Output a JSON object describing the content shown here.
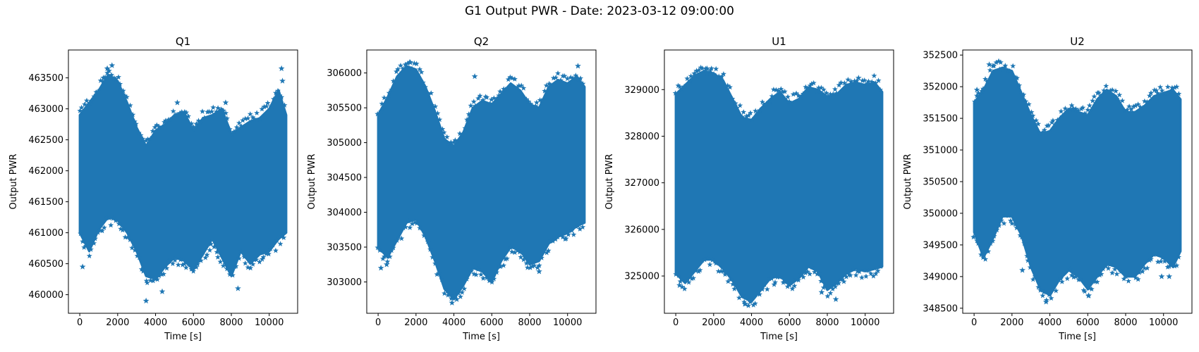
{
  "figure": {
    "title": "G1 Output PWR - Date: 2023-03-12 09:00:00"
  },
  "chart_data": [
    {
      "type": "scatter",
      "title": "Q1",
      "xlabel": "Time [s]",
      "ylabel": "Output PWR",
      "xlim": [
        -600,
        11500
      ],
      "ylim": [
        459700,
        463950
      ],
      "xticks": [
        0,
        2000,
        4000,
        6000,
        8000,
        10000
      ],
      "yticks": [
        460000,
        460500,
        461000,
        461500,
        462000,
        462500,
        463000,
        463500
      ],
      "marker": "star",
      "color": "#1f77b4",
      "grid": false,
      "band": {
        "x": [
          0,
          500,
          1000,
          1500,
          2000,
          2500,
          3000,
          3500,
          4000,
          4500,
          5000,
          5500,
          6000,
          6500,
          7000,
          7500,
          8000,
          8500,
          9000,
          9500,
          10000,
          10500,
          10900
        ],
        "upper": [
          462900,
          463100,
          463300,
          463550,
          463450,
          463100,
          462700,
          462400,
          462650,
          462750,
          462900,
          462950,
          462650,
          462850,
          462900,
          463000,
          462600,
          462700,
          462800,
          462850,
          463000,
          463300,
          462900
        ],
        "lower": [
          461000,
          460700,
          461050,
          461250,
          461200,
          461000,
          460700,
          460300,
          460250,
          460450,
          460600,
          460550,
          460400,
          460650,
          460900,
          460600,
          460300,
          460700,
          460500,
          460650,
          460700,
          460900,
          461000
        ]
      },
      "outliers": [
        [
          1700,
          463700
        ],
        [
          1450,
          463650
        ],
        [
          1250,
          463500
        ],
        [
          10650,
          463650
        ],
        [
          10700,
          463450
        ],
        [
          3500,
          459900
        ],
        [
          8350,
          460100
        ],
        [
          4350,
          460050
        ],
        [
          5150,
          463100
        ],
        [
          7700,
          463100
        ],
        [
          150,
          460450
        ]
      ]
    },
    {
      "type": "scatter",
      "title": "Q2",
      "xlabel": "Time [s]",
      "ylabel": "Output PWR",
      "xlim": [
        -600,
        11500
      ],
      "ylim": [
        302550,
        306330
      ],
      "xticks": [
        0,
        2000,
        4000,
        6000,
        8000,
        10000
      ],
      "yticks": [
        303000,
        303500,
        304000,
        304500,
        305000,
        305500,
        306000
      ],
      "marker": "star",
      "color": "#1f77b4",
      "grid": false,
      "band": {
        "x": [
          0,
          500,
          1000,
          1500,
          2000,
          2500,
          3000,
          3500,
          4000,
          4500,
          5000,
          5500,
          6000,
          6500,
          7000,
          7500,
          8000,
          8500,
          9000,
          9500,
          10000,
          10500,
          10900
        ],
        "upper": [
          305400,
          305650,
          305950,
          306100,
          306050,
          305800,
          305450,
          305050,
          304950,
          305150,
          305500,
          305600,
          305550,
          305700,
          305850,
          305750,
          305550,
          305500,
          305800,
          305900,
          305850,
          305950,
          305800
        ],
        "lower": [
          303500,
          303350,
          303600,
          303850,
          303900,
          303650,
          303300,
          302900,
          302750,
          302950,
          303200,
          303150,
          303000,
          303300,
          303500,
          303450,
          303250,
          303300,
          303550,
          303650,
          303700,
          303800,
          303850
        ]
      },
      "outliers": [
        [
          150,
          303200
        ],
        [
          450,
          303250
        ],
        [
          5100,
          305950
        ],
        [
          1700,
          306150
        ],
        [
          3900,
          302700
        ],
        [
          4150,
          302750
        ],
        [
          10550,
          306100
        ],
        [
          8500,
          303150
        ]
      ]
    },
    {
      "type": "scatter",
      "title": "U1",
      "xlabel": "Time [s]",
      "ylabel": "Output PWR",
      "xlim": [
        -600,
        11500
      ],
      "ylim": [
        324200,
        329850
      ],
      "xticks": [
        0,
        2000,
        4000,
        6000,
        8000,
        10000
      ],
      "yticks": [
        325000,
        326000,
        327000,
        328000,
        329000
      ],
      "marker": "star",
      "color": "#1f77b4",
      "grid": false,
      "band": {
        "x": [
          0,
          500,
          1000,
          1500,
          2000,
          2500,
          3000,
          3500,
          4000,
          4500,
          5000,
          5500,
          6000,
          6500,
          7000,
          7500,
          8000,
          8500,
          9000,
          9500,
          10000,
          10500,
          10900
        ],
        "upper": [
          328900,
          329100,
          329300,
          329400,
          329350,
          329200,
          328800,
          328400,
          328350,
          328600,
          328800,
          328950,
          328700,
          328800,
          329050,
          329000,
          328850,
          328900,
          329100,
          329150,
          329100,
          329150,
          328950
        ],
        "lower": [
          325050,
          324850,
          325100,
          325350,
          325350,
          325150,
          324900,
          324550,
          324450,
          324700,
          324950,
          325000,
          324800,
          324950,
          325200,
          325100,
          324700,
          324850,
          325050,
          325150,
          325100,
          325150,
          325200
        ]
      },
      "outliers": [
        [
          1650,
          329450
        ],
        [
          1100,
          329400
        ],
        [
          3650,
          324400
        ],
        [
          8450,
          324500
        ],
        [
          7700,
          324650
        ],
        [
          200,
          324800
        ],
        [
          9650,
          329250
        ]
      ]
    },
    {
      "type": "scatter",
      "title": "U2",
      "xlabel": "Time [s]",
      "ylabel": "Output PWR",
      "xlim": [
        -600,
        11500
      ],
      "ylim": [
        348420,
        352580
      ],
      "xticks": [
        0,
        2000,
        4000,
        6000,
        8000,
        10000
      ],
      "yticks": [
        348500,
        349000,
        349500,
        350000,
        350500,
        351000,
        351500,
        352000,
        352500
      ],
      "marker": "star",
      "color": "#1f77b4",
      "grid": false,
      "band": {
        "x": [
          0,
          500,
          1000,
          1500,
          2000,
          2500,
          3000,
          3500,
          4000,
          4500,
          5000,
          5500,
          6000,
          6500,
          7000,
          7500,
          8000,
          8500,
          9000,
          9500,
          10000,
          10500,
          10900
        ],
        "upper": [
          351750,
          351950,
          352250,
          352300,
          352250,
          351900,
          351550,
          351250,
          351300,
          351500,
          351650,
          351600,
          351550,
          351800,
          351950,
          351850,
          351600,
          351600,
          351700,
          351850,
          351900,
          351950,
          351800
        ],
        "lower": [
          349700,
          349300,
          349600,
          349950,
          349950,
          349650,
          349150,
          348800,
          348700,
          348950,
          349100,
          349000,
          348800,
          349000,
          349200,
          349150,
          349000,
          349000,
          349200,
          349350,
          349300,
          349150,
          349400
        ]
      },
      "outliers": [
        [
          150,
          351950
        ],
        [
          800,
          352350
        ],
        [
          1300,
          352400
        ],
        [
          3800,
          348600
        ],
        [
          2550,
          349100
        ],
        [
          6050,
          348700
        ],
        [
          10300,
          349000
        ],
        [
          9900,
          349000
        ]
      ]
    }
  ]
}
